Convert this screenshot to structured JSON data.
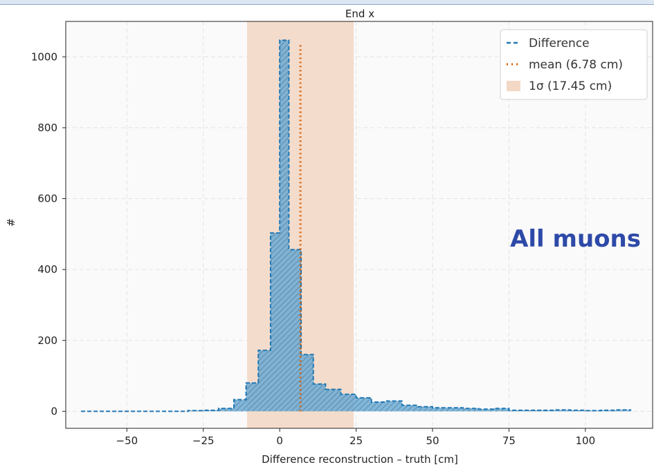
{
  "chart_data": {
    "type": "histogram",
    "title": "End x",
    "xlabel": "Difference reconstruction – truth [cm]",
    "ylabel": "#",
    "xlim": [
      -70,
      122
    ],
    "ylim": [
      -48,
      1100
    ],
    "xticks": [
      -50,
      -25,
      0,
      25,
      50,
      75,
      100
    ],
    "xtick_labels": [
      "−50",
      "−25",
      "0",
      "25",
      "50",
      "75",
      "100"
    ],
    "yticks": [
      0,
      200,
      400,
      600,
      800,
      1000
    ],
    "ytick_labels": [
      "0",
      "200",
      "400",
      "600",
      "800",
      "1000"
    ],
    "grid": true,
    "legend_position": "top-right",
    "annotation": "All muons",
    "series": [
      {
        "name": "Difference",
        "style": "dashed step, filled, hatched",
        "color": "#1f77b4",
        "fill_color": "#6aaad5",
        "bin_edges": [
          -65,
          -60,
          -55,
          -50,
          -45,
          -40,
          -35,
          -30,
          -25,
          -20,
          -15,
          -11,
          -7,
          -3,
          0,
          3,
          7,
          11,
          15,
          20,
          25,
          30,
          35,
          40,
          45,
          50,
          55,
          60,
          65,
          70,
          75,
          80,
          85,
          90,
          95,
          100,
          105,
          110,
          115
        ],
        "counts": [
          0,
          0,
          0,
          0,
          0,
          0,
          0,
          2,
          3,
          8,
          33,
          80,
          172,
          503,
          1047,
          456,
          160,
          77,
          62,
          48,
          38,
          26,
          29,
          17,
          13,
          10,
          10,
          8,
          6,
          8,
          3,
          3,
          3,
          4,
          3,
          2,
          3,
          4
        ]
      }
    ],
    "mean": {
      "label": "mean (6.78 cm)",
      "value": 6.78,
      "top": 1040,
      "color": "#d95f02"
    },
    "sigma_band": {
      "label": "1σ (17.45 cm)",
      "range": [
        -10.67,
        24.23
      ],
      "color": "#f3d8c6"
    }
  }
}
